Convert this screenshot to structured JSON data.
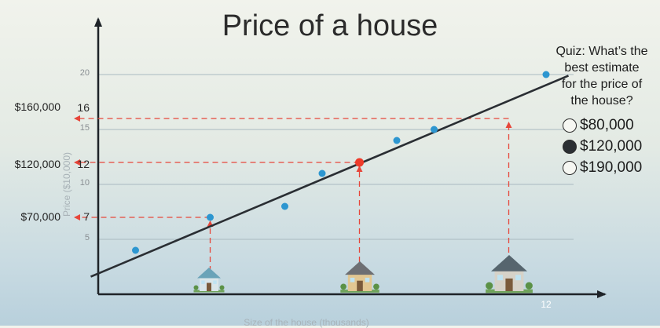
{
  "title": "Price of a house",
  "quiz": {
    "question_lines": [
      "Quiz: What’s the",
      "best estimate",
      "for the price of",
      "the house?"
    ],
    "options": [
      {
        "label": "$80,000",
        "selected": false
      },
      {
        "label": "$120,000",
        "selected": true
      },
      {
        "label": "$190,000",
        "selected": false
      }
    ]
  },
  "chart_data": {
    "type": "scatter",
    "title": "Price of a house",
    "xlabel": "Size of the house (thousands)",
    "ylabel": "Price ($10,000)",
    "xlim": [
      0,
      13
    ],
    "ylim": [
      0,
      21
    ],
    "x_ticks": [
      "12"
    ],
    "y_ticks_minor": [
      "5",
      "10",
      "15",
      "20"
    ],
    "y_ticks_highlight": [
      "7",
      "12",
      "16"
    ],
    "dollar_labels": [
      "$70,000",
      "$120,000",
      "$160,000"
    ],
    "points": [
      {
        "x": 1,
        "y": 4
      },
      {
        "x": 3,
        "y": 7
      },
      {
        "x": 5,
        "y": 8
      },
      {
        "x": 6,
        "y": 11
      },
      {
        "x": 8,
        "y": 14
      },
      {
        "x": 9,
        "y": 15
      },
      {
        "x": 12,
        "y": 20
      }
    ],
    "highlighted_points": [
      {
        "x": 3,
        "y": 7
      },
      {
        "x": 7,
        "y": 12
      },
      {
        "x": 11,
        "y": 16
      }
    ],
    "fit_line": {
      "x0": -0.2,
      "y0": 1.6,
      "x1": 12.6,
      "y1": 19.9
    },
    "gridlines_y": [
      5,
      10,
      15,
      20
    ],
    "colors": {
      "point": "#2d96d0",
      "highlight": "#ee3b2a",
      "guide": "#e7463a",
      "line": "#2a2e33",
      "axis": "#1e2328"
    }
  }
}
